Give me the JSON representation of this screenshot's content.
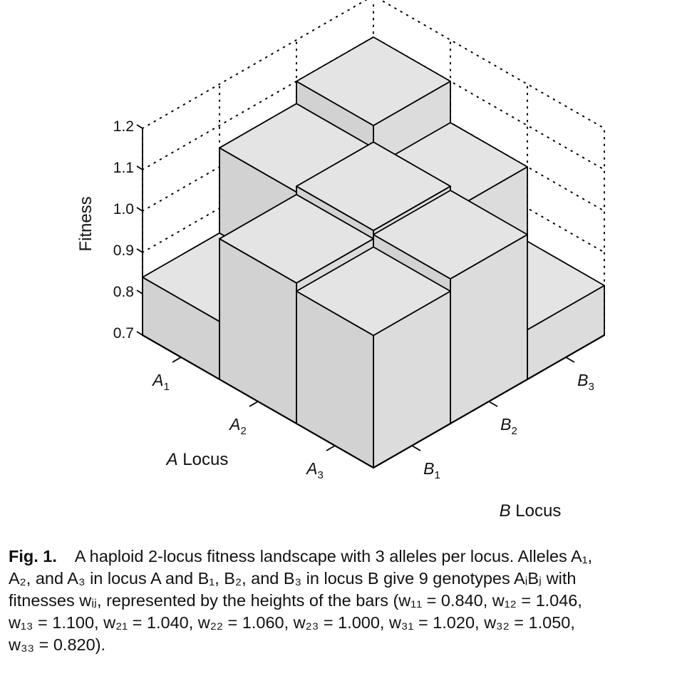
{
  "chart_data": {
    "type": "bar3d",
    "zlabel": "Fitness",
    "xlabel": {
      "var": "A",
      "text": " Locus"
    },
    "ylabel": {
      "var": "B",
      "text": " Locus"
    },
    "x_categories": [
      {
        "base": "A",
        "sub": "1"
      },
      {
        "base": "A",
        "sub": "2"
      },
      {
        "base": "A",
        "sub": "3"
      }
    ],
    "y_categories": [
      {
        "base": "B",
        "sub": "1"
      },
      {
        "base": "B",
        "sub": "2"
      },
      {
        "base": "B",
        "sub": "3"
      }
    ],
    "zticks": [
      "0.7",
      "0.8",
      "0.9",
      "1.0",
      "1.1",
      "1.2"
    ],
    "zlim": [
      0.7,
      1.2
    ],
    "grid": true,
    "values": [
      [
        0.84,
        1.046,
        1.1
      ],
      [
        1.04,
        1.06,
        1.0
      ],
      [
        1.02,
        1.05,
        0.82
      ]
    ]
  },
  "caption": {
    "label": "Fig. 1.",
    "lines": [
      "A haploid 2-locus fitness landscape with 3 alleles per locus. Alleles A₁,",
      "A₂, and A₃ in locus A and B₁, B₂, and B₃ in locus B give 9 genotypes AᵢBⱼ with",
      "fitnesses wᵢⱼ, represented by the heights of the bars (w₁₁ = 0.840, w₁₂ = 1.046,",
      "w₁₃ = 1.100, w₂₁ = 1.040, w₂₂ = 1.060, w₂₃ = 1.000, w₃₁ = 1.020, w₃₂ = 1.050,",
      "w₃₃ = 0.820)."
    ]
  }
}
